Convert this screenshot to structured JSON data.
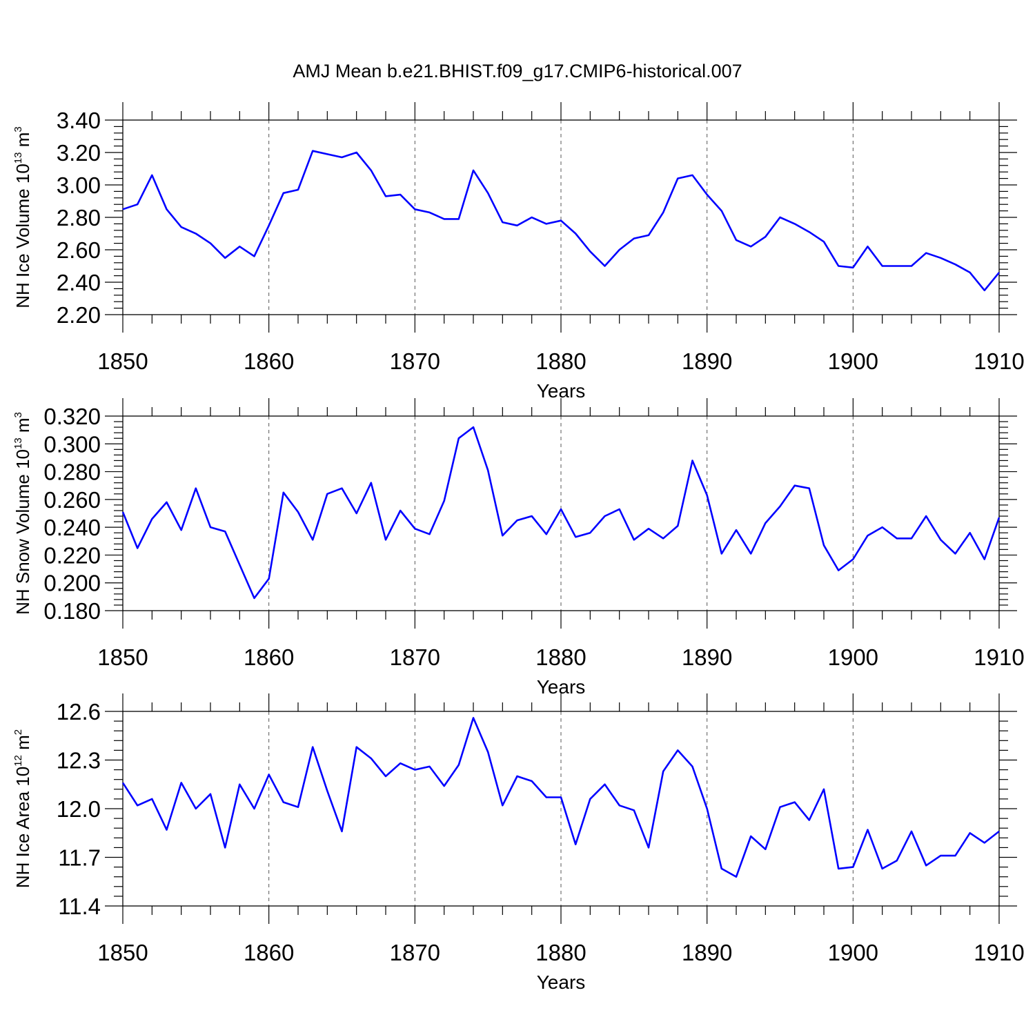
{
  "title": "AMJ Mean b.e21.BHIST.f09_g17.CMIP6-historical.007",
  "colors": {
    "series": "#0000ff",
    "axis": "#000000",
    "grid": "#555555"
  },
  "chart_data": [
    {
      "type": "line",
      "ylabel": {
        "main": "NH Ice Volume 10",
        "exp": "13",
        "unit": " m",
        "unit_exp": "3"
      },
      "xlabel": "Years",
      "xlim": [
        1850,
        1910
      ],
      "ylim": [
        2.2,
        3.4
      ],
      "yticks": [
        2.2,
        2.4,
        2.6,
        2.8,
        3.0,
        3.2,
        3.4
      ],
      "ytick_labels": [
        "2.20",
        "2.40",
        "2.60",
        "2.80",
        "3.00",
        "3.20",
        "3.40"
      ],
      "xticks": [
        1850,
        1860,
        1870,
        1880,
        1890,
        1900,
        1910
      ],
      "xtick_labels": [
        "1850",
        "1860",
        "1870",
        "1880",
        "1890",
        "1900",
        "1910"
      ],
      "grid": true,
      "x": [
        1850,
        1851,
        1852,
        1853,
        1854,
        1855,
        1856,
        1857,
        1858,
        1859,
        1860,
        1861,
        1862,
        1863,
        1864,
        1865,
        1866,
        1867,
        1868,
        1869,
        1870,
        1871,
        1872,
        1873,
        1874,
        1875,
        1876,
        1877,
        1878,
        1879,
        1880,
        1881,
        1882,
        1883,
        1884,
        1885,
        1886,
        1887,
        1888,
        1889,
        1890,
        1891,
        1892,
        1893,
        1894,
        1895,
        1896,
        1897,
        1898,
        1899,
        1900,
        1901,
        1902,
        1903,
        1904,
        1905,
        1906,
        1907,
        1908,
        1909,
        1910
      ],
      "series": [
        {
          "name": "NH Ice Volume",
          "values": [
            2.85,
            2.88,
            3.06,
            2.85,
            2.74,
            2.7,
            2.64,
            2.55,
            2.62,
            2.56,
            2.75,
            2.95,
            2.97,
            3.21,
            3.19,
            3.17,
            3.2,
            3.09,
            2.93,
            2.94,
            2.85,
            2.83,
            2.79,
            2.79,
            3.09,
            2.95,
            2.77,
            2.75,
            2.8,
            2.76,
            2.78,
            2.7,
            2.59,
            2.5,
            2.6,
            2.67,
            2.69,
            2.83,
            3.04,
            3.06,
            2.94,
            2.84,
            2.66,
            2.62,
            2.68,
            2.8,
            2.76,
            2.71,
            2.65,
            2.5,
            2.49,
            2.62,
            2.5,
            2.5,
            2.5,
            2.58,
            2.55,
            2.51,
            2.46,
            2.35,
            2.46
          ]
        }
      ]
    },
    {
      "type": "line",
      "ylabel": {
        "main": "NH Snow Volume 10",
        "exp": "13",
        "unit": " m",
        "unit_exp": "3"
      },
      "xlabel": "Years",
      "xlim": [
        1850,
        1910
      ],
      "ylim": [
        0.18,
        0.32
      ],
      "yticks": [
        0.18,
        0.2,
        0.22,
        0.24,
        0.26,
        0.28,
        0.3,
        0.32
      ],
      "ytick_labels": [
        "0.180",
        "0.200",
        "0.220",
        "0.240",
        "0.260",
        "0.280",
        "0.300",
        "0.320"
      ],
      "xticks": [
        1850,
        1860,
        1870,
        1880,
        1890,
        1900,
        1910
      ],
      "xtick_labels": [
        "1850",
        "1860",
        "1870",
        "1880",
        "1890",
        "1900",
        "1910"
      ],
      "grid": true,
      "x": [
        1850,
        1851,
        1852,
        1853,
        1854,
        1855,
        1856,
        1857,
        1858,
        1859,
        1860,
        1861,
        1862,
        1863,
        1864,
        1865,
        1866,
        1867,
        1868,
        1869,
        1870,
        1871,
        1872,
        1873,
        1874,
        1875,
        1876,
        1877,
        1878,
        1879,
        1880,
        1881,
        1882,
        1883,
        1884,
        1885,
        1886,
        1887,
        1888,
        1889,
        1890,
        1891,
        1892,
        1893,
        1894,
        1895,
        1896,
        1897,
        1898,
        1899,
        1900,
        1901,
        1902,
        1903,
        1904,
        1905,
        1906,
        1907,
        1908,
        1909,
        1910
      ],
      "series": [
        {
          "name": "NH Snow Volume",
          "values": [
            0.251,
            0.225,
            0.246,
            0.258,
            0.238,
            0.268,
            0.24,
            0.237,
            0.213,
            0.189,
            0.203,
            0.265,
            0.251,
            0.231,
            0.264,
            0.268,
            0.25,
            0.272,
            0.231,
            0.252,
            0.239,
            0.235,
            0.259,
            0.304,
            0.312,
            0.281,
            0.234,
            0.245,
            0.248,
            0.235,
            0.253,
            0.233,
            0.236,
            0.248,
            0.253,
            0.231,
            0.239,
            0.232,
            0.241,
            0.288,
            0.263,
            0.221,
            0.238,
            0.221,
            0.243,
            0.255,
            0.27,
            0.268,
            0.227,
            0.209,
            0.217,
            0.234,
            0.24,
            0.232,
            0.232,
            0.248,
            0.231,
            0.221,
            0.236,
            0.217,
            0.247
          ]
        }
      ]
    },
    {
      "type": "line",
      "ylabel": {
        "main": "NH Ice Area 10",
        "exp": "12",
        "unit": " m",
        "unit_exp": "2"
      },
      "xlabel": "Years",
      "xlim": [
        1850,
        1910
      ],
      "ylim": [
        11.4,
        12.6
      ],
      "yticks": [
        11.4,
        11.7,
        12.0,
        12.3,
        12.6
      ],
      "ytick_labels": [
        "11.4",
        "11.7",
        "12.0",
        "12.3",
        "12.6"
      ],
      "xticks": [
        1850,
        1860,
        1870,
        1880,
        1890,
        1900,
        1910
      ],
      "xtick_labels": [
        "1850",
        "1860",
        "1870",
        "1880",
        "1890",
        "1900",
        "1910"
      ],
      "grid": true,
      "x": [
        1850,
        1851,
        1852,
        1853,
        1854,
        1855,
        1856,
        1857,
        1858,
        1859,
        1860,
        1861,
        1862,
        1863,
        1864,
        1865,
        1866,
        1867,
        1868,
        1869,
        1870,
        1871,
        1872,
        1873,
        1874,
        1875,
        1876,
        1877,
        1878,
        1879,
        1880,
        1881,
        1882,
        1883,
        1884,
        1885,
        1886,
        1887,
        1888,
        1889,
        1890,
        1891,
        1892,
        1893,
        1894,
        1895,
        1896,
        1897,
        1898,
        1899,
        1900,
        1901,
        1902,
        1903,
        1904,
        1905,
        1906,
        1907,
        1908,
        1909,
        1910
      ],
      "series": [
        {
          "name": "NH Ice Area",
          "values": [
            12.16,
            12.02,
            12.06,
            11.87,
            12.16,
            12.0,
            12.09,
            11.76,
            12.15,
            12.0,
            12.21,
            12.04,
            12.01,
            12.38,
            12.11,
            11.86,
            12.38,
            12.31,
            12.2,
            12.28,
            12.24,
            12.26,
            12.14,
            12.27,
            12.56,
            12.35,
            12.02,
            12.2,
            12.17,
            12.07,
            12.07,
            11.78,
            12.06,
            12.15,
            12.02,
            11.99,
            11.76,
            12.23,
            12.36,
            12.26,
            12.0,
            11.63,
            11.58,
            11.83,
            11.75,
            12.01,
            12.04,
            11.93,
            12.12,
            11.63,
            11.64,
            11.87,
            11.63,
            11.68,
            11.86,
            11.65,
            11.71,
            11.71,
            11.85,
            11.79,
            11.86
          ]
        }
      ]
    }
  ]
}
